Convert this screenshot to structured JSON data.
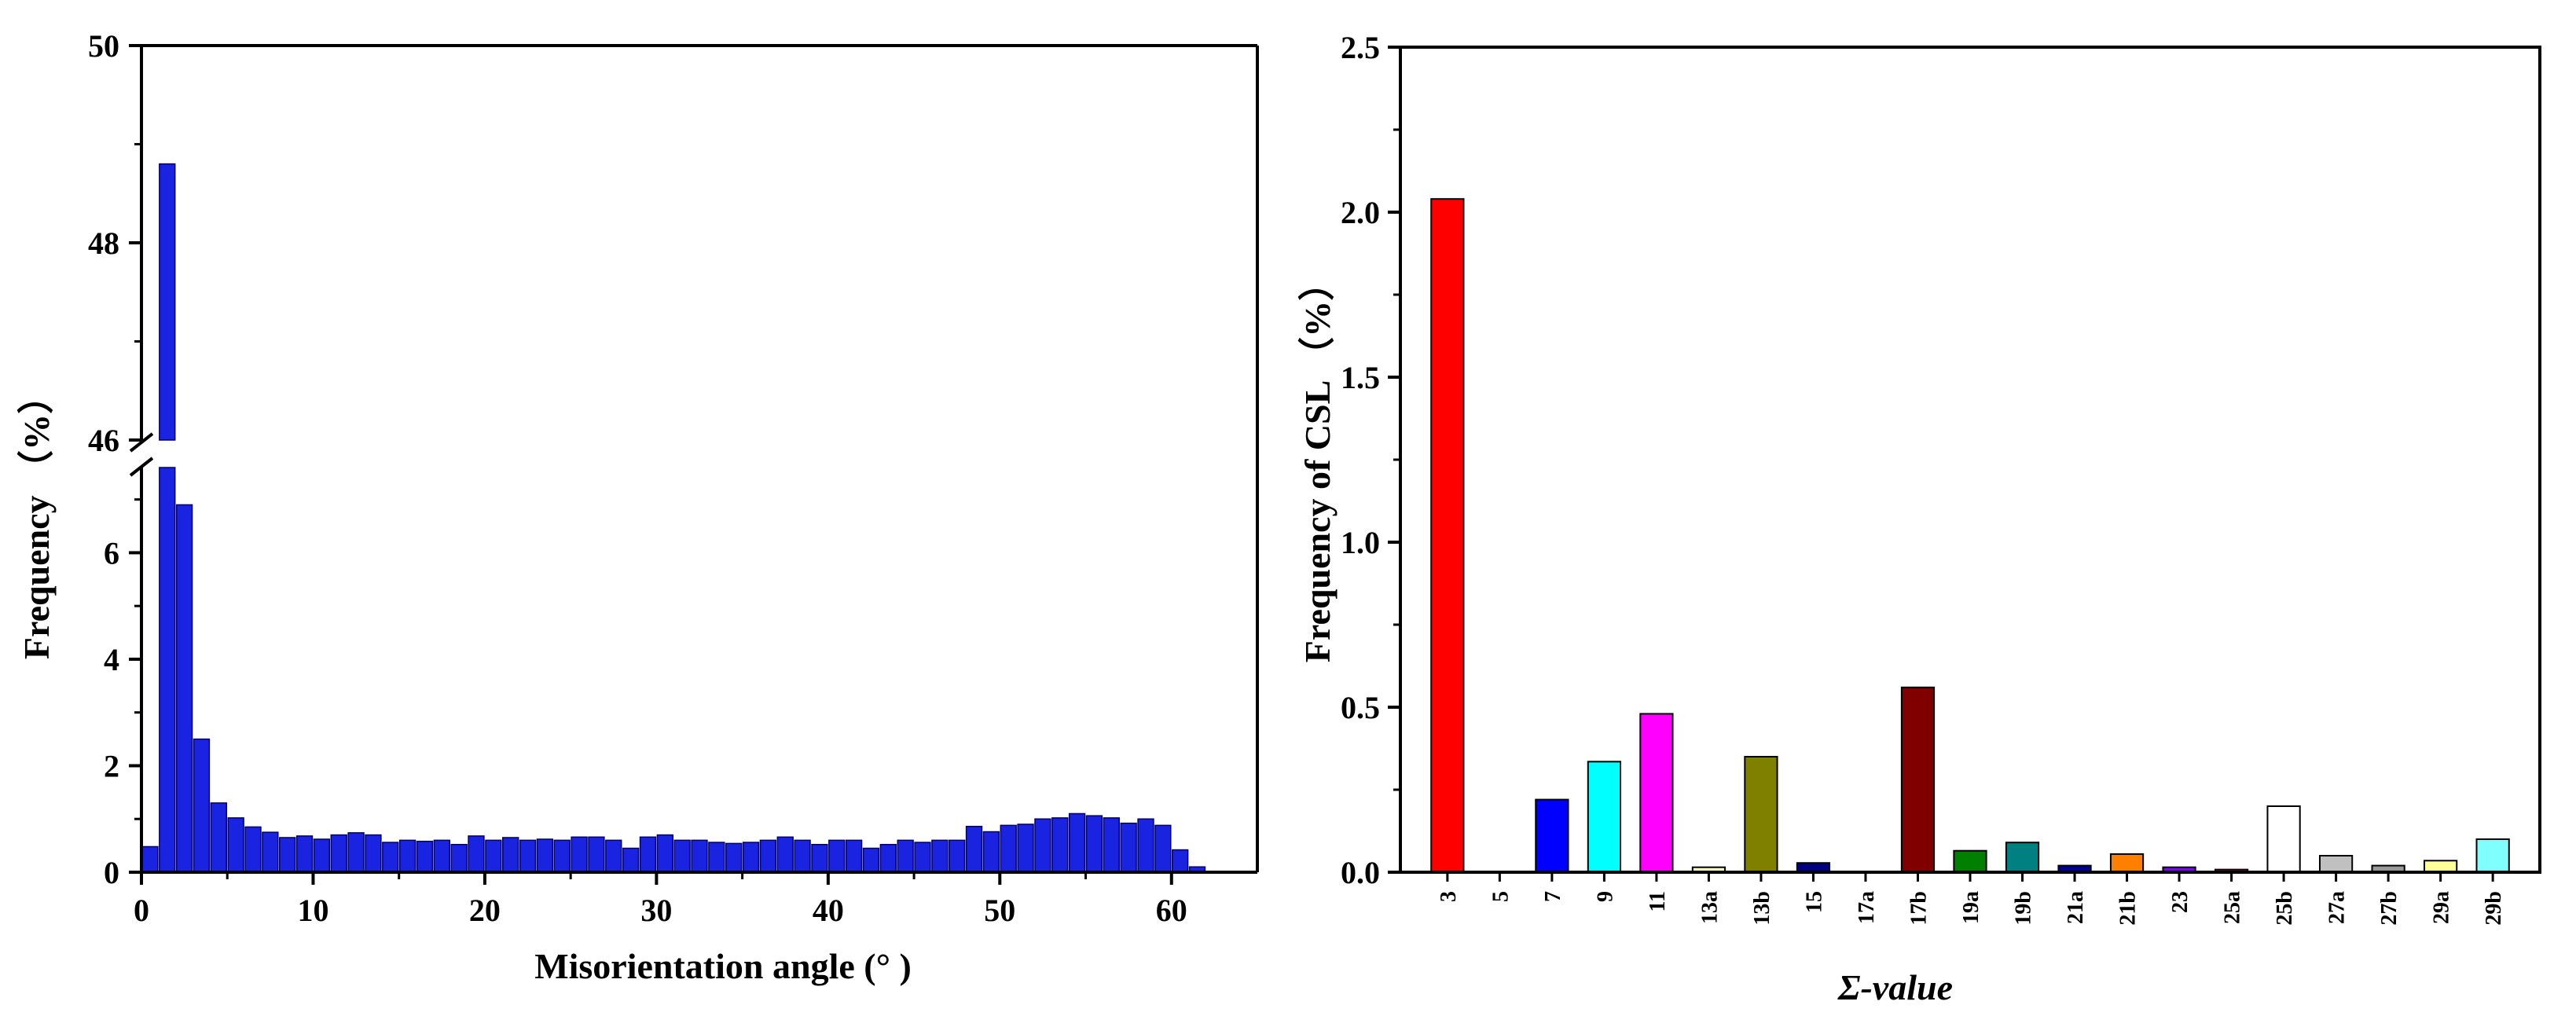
{
  "colors": {
    "bar_blue": "#1a23e0",
    "bar_edge": "#00006e",
    "axis": "#000000"
  },
  "chart_data": [
    {
      "type": "bar",
      "xlabel": "Misorientation angle (°  )",
      "ylabel": "Frequency （%）",
      "xlim": [
        0,
        65
      ],
      "x_ticks": [
        "0",
        "10",
        "20",
        "30",
        "40",
        "50",
        "60"
      ],
      "y_ticks_lower": [
        "0",
        "2",
        "4",
        "6"
      ],
      "y_ticks_upper": [
        "46",
        "48",
        "50"
      ],
      "y_axis_break": [
        7.6,
        46
      ],
      "ylim_lower": [
        0,
        7.6
      ],
      "ylim_upper": [
        46,
        50
      ],
      "bin_width": 1,
      "x": [
        0.5,
        1.5,
        2.5,
        3.5,
        4.5,
        5.5,
        6.5,
        7.5,
        8.5,
        9.5,
        10.5,
        11.5,
        12.5,
        13.5,
        14.5,
        15.5,
        16.5,
        17.5,
        18.5,
        19.5,
        20.5,
        21.5,
        22.5,
        23.5,
        24.5,
        25.5,
        26.5,
        27.5,
        28.5,
        29.5,
        30.5,
        31.5,
        32.5,
        33.5,
        34.5,
        35.5,
        36.5,
        37.5,
        38.5,
        39.5,
        40.5,
        41.5,
        42.5,
        43.5,
        44.5,
        45.5,
        46.5,
        47.5,
        48.5,
        49.5,
        50.5,
        51.5,
        52.5,
        53.5,
        54.5,
        55.5,
        56.5,
        57.5,
        58.5,
        59.5,
        60.5,
        61.5
      ],
      "values": [
        0.48,
        48.8,
        6.9,
        2.5,
        1.3,
        1.02,
        0.85,
        0.75,
        0.65,
        0.68,
        0.62,
        0.7,
        0.74,
        0.7,
        0.56,
        0.6,
        0.58,
        0.6,
        0.52,
        0.68,
        0.6,
        0.65,
        0.6,
        0.62,
        0.6,
        0.66,
        0.66,
        0.6,
        0.45,
        0.66,
        0.7,
        0.6,
        0.6,
        0.56,
        0.54,
        0.56,
        0.6,
        0.66,
        0.6,
        0.52,
        0.6,
        0.6,
        0.45,
        0.52,
        0.6,
        0.56,
        0.6,
        0.6,
        0.86,
        0.76,
        0.88,
        0.9,
        1.0,
        1.02,
        1.1,
        1.06,
        1.02,
        0.92,
        1.0,
        0.88,
        0.42,
        0.1
      ]
    },
    {
      "type": "bar",
      "xlabel": "Σ-value",
      "ylabel": "Frequency of CSL （%）",
      "ylim": [
        0,
        2.5
      ],
      "y_ticks": [
        "0.0",
        "0.5",
        "1.0",
        "1.5",
        "2.0",
        "2.5"
      ],
      "categories": [
        "3",
        "5",
        "7",
        "9",
        "11",
        "13a",
        "13b",
        "15",
        "17a",
        "17b",
        "19a",
        "19b",
        "21a",
        "21b",
        "23",
        "25a",
        "25b",
        "27a",
        "27b",
        "29a",
        "29b"
      ],
      "values": [
        2.04,
        0,
        0.22,
        0.335,
        0.48,
        0.015,
        0.35,
        0.028,
        0,
        0.56,
        0.065,
        0.09,
        0.02,
        0.055,
        0.015,
        0.008,
        0.2,
        0.05,
        0.02,
        0.035,
        0.1
      ],
      "colors": [
        "#ff0000",
        "#ffffff",
        "#0000ff",
        "#00ffff",
        "#ff00ff",
        "#ffffcc",
        "#808000",
        "#000080",
        "#ffffff",
        "#800000",
        "#007f00",
        "#008080",
        "#000099",
        "#ff8000",
        "#8000ff",
        "#cc0066",
        "#ffffff",
        "#c0c0c0",
        "#999999",
        "#ffff99",
        "#80ffff"
      ],
      "series_note": ""
    }
  ]
}
